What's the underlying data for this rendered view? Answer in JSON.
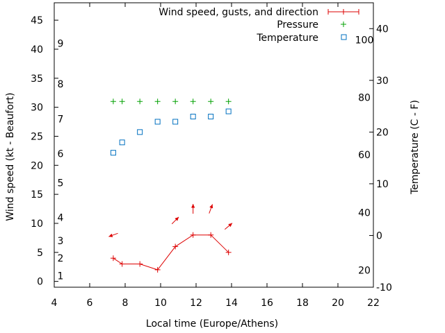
{
  "chart_data": {
    "type": "line",
    "title": "",
    "xlabel": "Local time (Europe/Athens)",
    "ylabel": "Wind speed (kt - Beaufort)",
    "y2label": "Temperature (C - F)",
    "xlim": [
      4,
      22
    ],
    "ylim": [
      -1,
      48
    ],
    "y2lim": [
      -10,
      45
    ],
    "x_ticks": [
      4,
      6,
      8,
      10,
      12,
      14,
      16,
      18,
      20,
      22
    ],
    "y_ticks": [
      0,
      5,
      10,
      15,
      20,
      25,
      30,
      35,
      40,
      45
    ],
    "y2_ticks": [
      -10,
      0,
      10,
      20,
      30,
      40
    ],
    "beaufort_labels": [
      {
        "label": "1",
        "y": 1
      },
      {
        "label": "2",
        "y": 4
      },
      {
        "label": "3",
        "y": 7
      },
      {
        "label": "4",
        "y": 11
      },
      {
        "label": "5",
        "y": 17
      },
      {
        "label": "6",
        "y": 22
      },
      {
        "label": "7",
        "y": 28
      },
      {
        "label": "8",
        "y": 34
      },
      {
        "label": "9",
        "y": 41
      }
    ],
    "fahrenheit_labels": [
      {
        "label": "20",
        "y2": -6.7
      },
      {
        "label": "40",
        "y2": 4.4
      },
      {
        "label": "60",
        "y2": 15.6
      },
      {
        "label": "80",
        "y2": 26.7
      },
      {
        "label": "100",
        "y2": 37.8
      }
    ],
    "legend_position": "top-right",
    "colors": {
      "wind": "#dd0000",
      "pressure": "#00a000",
      "temperature": "#0070c0"
    },
    "series": [
      {
        "name": "Wind speed, gusts, and direction",
        "marker": "line-plus",
        "x": [
          7.33,
          7.83,
          8.83,
          9.83,
          10.83,
          11.83,
          12.83,
          13.83
        ],
        "values": [
          4,
          3,
          3,
          2,
          6,
          8,
          8,
          5
        ],
        "arrows": [
          {
            "x": 7.33,
            "y": 8,
            "angle_deg": 200
          },
          {
            "x": 10.83,
            "y": 10.5,
            "angle_deg": 45
          },
          {
            "x": 11.83,
            "y": 12.5,
            "angle_deg": 90
          },
          {
            "x": 12.83,
            "y": 12.5,
            "angle_deg": 70
          },
          {
            "x": 13.83,
            "y": 9.5,
            "angle_deg": 40
          }
        ]
      },
      {
        "name": "Pressure",
        "marker": "plus",
        "x": [
          7.33,
          7.83,
          8.83,
          9.83,
          10.83,
          11.83,
          12.83,
          13.83
        ],
        "values": [
          31,
          31,
          31,
          31,
          31,
          31,
          31,
          31
        ]
      },
      {
        "name": "Temperature",
        "marker": "square",
        "axis": "y2",
        "x": [
          7.33,
          7.83,
          8.83,
          9.83,
          10.83,
          11.83,
          12.83,
          13.83
        ],
        "values": [
          16,
          18,
          20,
          22,
          22,
          23,
          23,
          24
        ]
      }
    ]
  }
}
